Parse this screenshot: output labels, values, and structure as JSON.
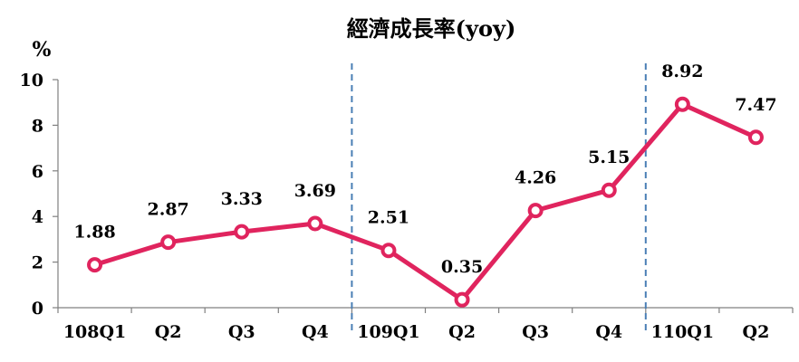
{
  "chart_data": {
    "type": "line",
    "title": "經濟成長率(yoy)",
    "ylabel": "%",
    "xlabel": "",
    "categories": [
      "108Q1",
      "Q2",
      "Q3",
      "Q4",
      "109Q1",
      "Q2",
      "Q3",
      "Q4",
      "110Q1",
      "Q2"
    ],
    "series": [
      {
        "values": [
          1.88,
          2.87,
          3.33,
          3.69,
          2.51,
          0.35,
          4.26,
          5.15,
          8.92,
          7.47
        ]
      }
    ],
    "data_labels": [
      "1.88",
      "2.87",
      "3.33",
      "3.69",
      "2.51",
      "0.35",
      "4.26",
      "5.15",
      "8.92",
      "7.47"
    ],
    "ylim": [
      0,
      10
    ],
    "yticks": [
      "0",
      "2",
      "4",
      "6",
      "8",
      "10"
    ],
    "grid": false,
    "year_dividers_after": [
      "Q4",
      "Q4"
    ],
    "line_color": "#e0245e",
    "marker_fill": "#ffffff",
    "divider_color": "#4a7fb5"
  }
}
